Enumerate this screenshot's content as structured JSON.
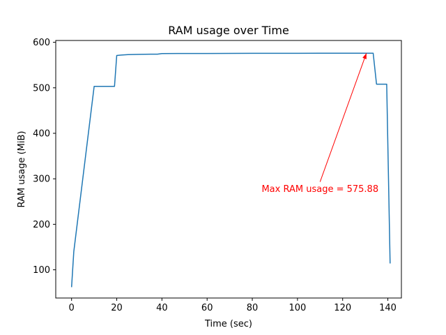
{
  "chart_data": {
    "type": "line",
    "title": "RAM usage over Time",
    "xlabel": "Time (sec)",
    "ylabel": "RAM usage (MiB)",
    "xlim": [
      -7,
      146
    ],
    "ylim": [
      38,
      604
    ],
    "xticks": [
      0,
      20,
      40,
      60,
      80,
      100,
      120,
      140
    ],
    "yticks": [
      100,
      200,
      300,
      400,
      500,
      600
    ],
    "grid": false,
    "line_color": "#1f77b4",
    "series": [
      {
        "x": [
          0,
          1,
          10,
          12,
          19,
          20,
          22,
          25,
          30,
          35,
          38,
          40,
          50,
          60,
          70,
          80,
          90,
          100,
          110,
          120,
          130,
          133.5,
          135,
          138,
          139.5,
          141
        ],
        "y": [
          62,
          140,
          503,
          503,
          503,
          571,
          572,
          573,
          573.5,
          574,
          574,
          575.3,
          575.4,
          575.5,
          575.6,
          575.7,
          575.8,
          575.85,
          575.88,
          575.88,
          575.88,
          575.88,
          508,
          508,
          508,
          114
        ]
      }
    ],
    "annotations": [
      {
        "text": "Max RAM usage = 575.88",
        "text_xy": [
          110,
          278
        ],
        "arrow_to": [
          130.5,
          575.88
        ],
        "color": "#ff0000"
      }
    ]
  }
}
